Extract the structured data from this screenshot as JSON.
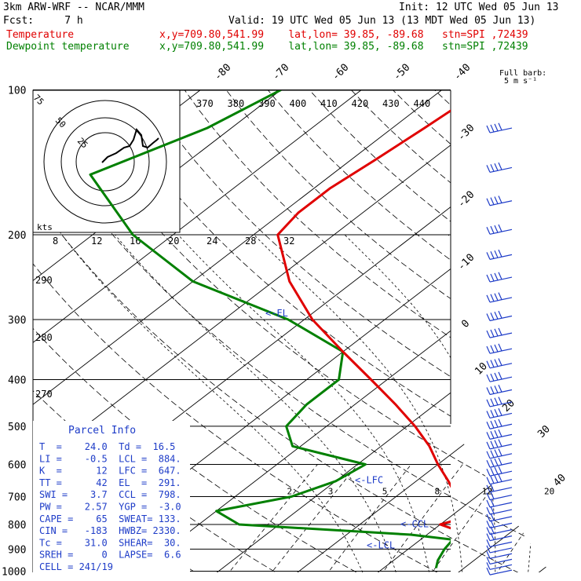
{
  "header": {
    "model": "3km ARW-WRF -- NCAR/MMM",
    "init": "Init: 12 UTC Wed 05 Jun 13",
    "fcst": "Fcst:     7 h",
    "valid": "Valid: 19 UTC Wed 05 Jun 13 (13 MDT Wed 05 Jun 13)",
    "temp_label": "Temperature",
    "dew_label": "Dewpoint temperature",
    "loc_info": "x,y=709.80,541.99    lat,lon= 39.85, -89.68   stn=SPI ,72439",
    "colors": {
      "temperature": "#e00000",
      "dewpoint": "#008000",
      "panel": "#1e3cc8"
    }
  },
  "chart_data": {
    "type": "skew-t",
    "pressure_levels": [
      100,
      200,
      300,
      400,
      500,
      600,
      700,
      800,
      900,
      1000
    ],
    "temperature_ticks": [
      "-80",
      "-70",
      "-60",
      "-50",
      "-40",
      "-30",
      "-20",
      "-10",
      "0",
      "10",
      "20",
      "30",
      "40"
    ],
    "theta_labels": [
      "370",
      "380",
      "390",
      "400",
      "410",
      "420",
      "430",
      "440"
    ],
    "theta_left_labels": [
      "290",
      "280",
      "270"
    ],
    "mixing_ratio_labels": [
      "2",
      "3",
      "5",
      "8",
      "12",
      "20"
    ],
    "hodograph": {
      "kts_label": "kts",
      "ring_labels": [
        "25",
        "50",
        "75"
      ],
      "x_labels": [
        "8",
        "12",
        "16",
        "20",
        "24",
        "28",
        "32"
      ]
    },
    "barb_legend": {
      "line1": "Full barb:",
      "line2": "5 m s⁻¹"
    },
    "annotations": {
      "el": "<-EL",
      "lfc": "<-LFC",
      "lcl": "<-LCL",
      "ccl": "<-CCL"
    },
    "temperature_profile": [
      {
        "p": 100,
        "t": -55
      },
      {
        "p": 120,
        "t": -56
      },
      {
        "p": 140,
        "t": -57
      },
      {
        "p": 160,
        "t": -58
      },
      {
        "p": 180,
        "t": -58
      },
      {
        "p": 200,
        "t": -57
      },
      {
        "p": 250,
        "t": -48
      },
      {
        "p": 300,
        "t": -39
      },
      {
        "p": 350,
        "t": -30
      },
      {
        "p": 400,
        "t": -22
      },
      {
        "p": 450,
        "t": -15
      },
      {
        "p": 500,
        "t": -9
      },
      {
        "p": 550,
        "t": -4
      },
      {
        "p": 600,
        "t": 0
      },
      {
        "p": 650,
        "t": 4
      },
      {
        "p": 700,
        "t": 7.5
      },
      {
        "p": 750,
        "t": 10
      },
      {
        "p": 780,
        "t": 11.5
      },
      {
        "p": 800,
        "t": 10
      },
      {
        "p": 830,
        "t": 14
      },
      {
        "p": 860,
        "t": 16.5
      },
      {
        "p": 900,
        "t": 17.5
      },
      {
        "p": 950,
        "t": 20.5
      },
      {
        "p": 985,
        "t": 24
      }
    ],
    "dewpoint_profile": [
      {
        "p": 100,
        "t": -80
      },
      {
        "p": 120,
        "t": -83
      },
      {
        "p": 150,
        "t": -90
      },
      {
        "p": 200,
        "t": -75
      },
      {
        "p": 250,
        "t": -60
      },
      {
        "p": 300,
        "t": -42
      },
      {
        "p": 350,
        "t": -30
      },
      {
        "p": 400,
        "t": -26
      },
      {
        "p": 450,
        "t": -26
      },
      {
        "p": 500,
        "t": -25
      },
      {
        "p": 550,
        "t": -21
      },
      {
        "p": 600,
        "t": -9
      },
      {
        "p": 650,
        "t": -10
      },
      {
        "p": 700,
        "t": -13
      },
      {
        "p": 750,
        "t": -20
      },
      {
        "p": 800,
        "t": -15
      },
      {
        "p": 840,
        "t": 8
      },
      {
        "p": 860,
        "t": 14
      },
      {
        "p": 900,
        "t": 14.5
      },
      {
        "p": 950,
        "t": 15.5
      },
      {
        "p": 985,
        "t": 16.5
      }
    ]
  },
  "parcel_info": {
    "title": "Parcel Info",
    "rows": [
      "T  =    24.0  Td =  16.5",
      "LI =    -0.5  LCL =  884.",
      "K  =      12  LFC =  647.",
      "TT =      42  EL  =  291.",
      "SWI =    3.7  CCL =  798.",
      "PW =    2.57  YGP =  -3.0",
      "CAPE =    65  SWEAT= 133.",
      "CIN =   -183  HWBZ= 2330.",
      "Tc =    31.0  SHEAR=  30.",
      "SREH =     0  LAPSE=  6.6",
      "CELL = 241/19"
    ]
  }
}
